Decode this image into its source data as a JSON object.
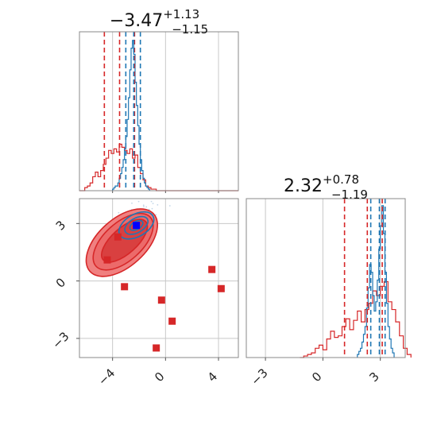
{
  "chart_data": {
    "type": "corner",
    "colors": {
      "red": "#d62728",
      "blue": "#1f77b4",
      "red_fill": "#f08080",
      "red_mid": "#e65252",
      "square_blue": "#0000ff",
      "grid": "#c8c8c8",
      "frame": "#888888"
    },
    "param_1": {
      "title_main": "−3.47",
      "title_sup": "+1.13",
      "title_sub": "−1.15",
      "range": [
        -6.5,
        5.5
      ],
      "ticks": [
        -4,
        0,
        4
      ],
      "tick_labels": [
        "−4",
        "0",
        "4"
      ],
      "red_quantiles": [
        -4.62,
        -3.47,
        -2.34
      ],
      "blue_quantiles": [
        -3.0,
        -2.4,
        -1.9
      ],
      "red_hist": {
        "start": -6.5,
        "width": 0.2,
        "values": [
          0,
          0,
          0.02,
          0.03,
          0.05,
          0.09,
          0.12,
          0.09,
          0.13,
          0.17,
          0.21,
          0.26,
          0.24,
          0.27,
          0.25,
          0.3,
          0.28,
          0.26,
          0.24,
          0.27,
          0.21,
          0.23,
          0.15,
          0.11,
          0.07,
          0.03,
          0.02,
          0.01,
          0.01,
          0,
          0,
          0,
          0,
          0,
          0,
          0,
          0,
          0,
          0,
          0,
          0,
          0,
          0,
          0,
          0,
          0,
          0,
          0,
          0,
          0,
          0,
          0,
          0,
          0,
          0,
          0,
          0,
          0,
          0,
          0
        ]
      },
      "blue_hist": {
        "start": -4.0,
        "width": 0.1,
        "values": [
          0.01,
          0.02,
          0.03,
          0.03,
          0.05,
          0.08,
          0.11,
          0.15,
          0.2,
          0.27,
          0.35,
          0.46,
          0.6,
          0.78,
          0.92,
          0.97,
          0.88,
          0.7,
          0.55,
          0.42,
          0.3,
          0.2,
          0.13,
          0.08,
          0.05,
          0.03,
          0.02,
          0.01
        ]
      }
    },
    "param_2": {
      "title_main": "2.32",
      "title_sup": "+0.78",
      "title_sub": "−1.19",
      "range": [
        -4,
        4.3
      ],
      "ticks": [
        -3,
        0,
        3
      ],
      "tick_labels": [
        "−3",
        "0",
        "3"
      ],
      "red_quantiles": [
        1.13,
        2.32,
        3.1
      ],
      "blue_quantiles": [
        2.5,
        2.95,
        3.25
      ],
      "red_hist": {
        "start": -1.2,
        "width": 0.2,
        "values": [
          0,
          0.01,
          0.02,
          0.03,
          0.06,
          0.08,
          0.05,
          0.12,
          0.17,
          0.13,
          0.14,
          0.2,
          0.25,
          0.18,
          0.24,
          0.3,
          0.23,
          0.31,
          0.35,
          0.43,
          0.4,
          0.46,
          0.49,
          0.36,
          0.31,
          0.23,
          0.14,
          0.06,
          0.02
        ]
      },
      "blue_hist": {
        "start": 1.8,
        "width": 0.08,
        "values": [
          0.02,
          0.04,
          0.06,
          0.1,
          0.15,
          0.2,
          0.32,
          0.45,
          0.6,
          0.55,
          0.4,
          0.3,
          0.36,
          0.5,
          0.7,
          0.85,
          0.98,
          0.8,
          0.55,
          0.35,
          0.2,
          0.12,
          0.06,
          0.03
        ]
      }
    },
    "scatter_markers": [
      {
        "x": -4.4,
        "y": 1.1,
        "color": "red"
      },
      {
        "x": -3.6,
        "y": 2.3,
        "color": "red"
      },
      {
        "x": -3.1,
        "y": -0.3,
        "color": "red"
      },
      {
        "x": -0.3,
        "y": -1.0,
        "color": "red"
      },
      {
        "x": 0.5,
        "y": -2.1,
        "color": "red"
      },
      {
        "x": -0.7,
        "y": -3.5,
        "color": "red"
      },
      {
        "x": 3.5,
        "y": 0.6,
        "color": "red"
      },
      {
        "x": 4.2,
        "y": -0.4,
        "color": "red"
      },
      {
        "x": -2.2,
        "y": 2.9,
        "color": "blue"
      }
    ]
  }
}
